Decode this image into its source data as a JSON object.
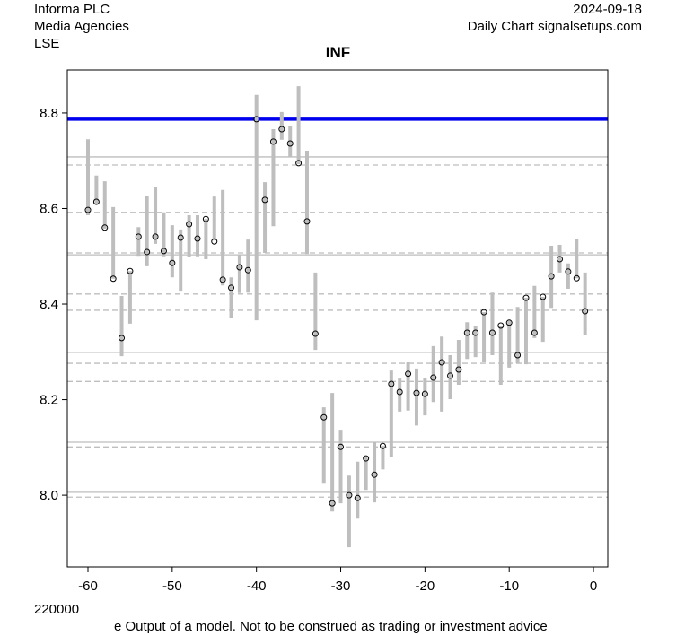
{
  "header": {
    "company": "Informa PLC",
    "sector": "Media Agencies",
    "exchange": "LSE",
    "date": "2024-09-18",
    "source": "Daily Chart signalsetups.com"
  },
  "footer": {
    "left_number": "220000",
    "disclaimer": "e Output of a model. Not to be construed as trading or investment advice"
  },
  "chart_data": {
    "type": "range-bar",
    "title": "INF",
    "xlim": [
      -62.45,
      1.7
    ],
    "ylim": [
      7.85,
      8.89
    ],
    "x_ticks": [
      -60,
      -50,
      -40,
      -30,
      -20,
      -10,
      0
    ],
    "y_ticks": [
      8.0,
      8.2,
      8.4,
      8.6,
      8.8
    ],
    "x": [
      -60,
      -59,
      -58,
      -57,
      -56,
      -55,
      -54,
      -53,
      -52,
      -51,
      -50,
      -49,
      -48,
      -47,
      -46,
      -45,
      -44,
      -43,
      -42,
      -41,
      -40,
      -39,
      -38,
      -37,
      -36,
      -35,
      -34,
      -33,
      -32,
      -31,
      -30,
      -29,
      -28,
      -27,
      -26,
      -25,
      -24,
      -23,
      -22,
      -21,
      -20,
      -19,
      -18,
      -17,
      -16,
      -15,
      -14,
      -13,
      -12,
      -11,
      -10,
      -9,
      -8,
      -7,
      -6,
      -5,
      -4,
      -3,
      -2,
      -1
    ],
    "close": [
      8.597,
      8.614,
      8.56,
      8.453,
      8.329,
      8.469,
      8.541,
      8.509,
      8.541,
      8.511,
      8.486,
      8.539,
      8.567,
      8.537,
      8.578,
      8.531,
      8.451,
      8.434,
      8.477,
      8.471,
      8.787,
      8.618,
      8.74,
      8.766,
      8.736,
      8.695,
      8.573,
      8.338,
      8.163,
      7.983,
      8.101,
      8.0,
      7.994,
      8.077,
      8.043,
      8.103,
      8.233,
      8.216,
      8.254,
      8.214,
      8.212,
      8.246,
      8.278,
      8.25,
      8.263,
      8.34,
      8.34,
      8.383,
      8.34,
      8.355,
      8.361,
      8.293,
      8.413,
      8.34,
      8.415,
      8.458,
      8.494,
      8.468,
      8.454,
      8.385
    ],
    "high": [
      8.745,
      8.669,
      8.657,
      8.603,
      8.417,
      8.469,
      8.561,
      8.627,
      8.646,
      8.592,
      8.565,
      8.556,
      8.586,
      8.586,
      8.578,
      8.625,
      8.639,
      8.456,
      8.503,
      8.535,
      8.838,
      8.655,
      8.766,
      8.802,
      8.772,
      8.856,
      8.721,
      8.466,
      8.184,
      8.214,
      8.137,
      8.041,
      8.07,
      8.081,
      8.111,
      8.103,
      8.261,
      8.244,
      8.278,
      8.265,
      8.246,
      8.312,
      8.332,
      8.293,
      8.325,
      8.362,
      8.355,
      8.383,
      8.424,
      8.355,
      8.366,
      8.394,
      8.413,
      8.438,
      8.415,
      8.522,
      8.524,
      8.485,
      8.537,
      8.466
    ],
    "low": [
      8.586,
      8.608,
      8.558,
      8.453,
      8.291,
      8.359,
      8.501,
      8.479,
      8.526,
      8.5,
      8.456,
      8.426,
      8.498,
      8.5,
      8.494,
      8.533,
      8.439,
      8.37,
      8.423,
      8.424,
      8.366,
      8.507,
      8.563,
      8.744,
      8.708,
      8.693,
      8.505,
      8.304,
      8.024,
      7.966,
      7.983,
      7.891,
      7.951,
      8.011,
      7.985,
      8.054,
      8.079,
      8.175,
      8.177,
      8.146,
      8.167,
      8.195,
      8.175,
      8.201,
      8.231,
      8.285,
      8.289,
      8.278,
      8.293,
      8.231,
      8.267,
      8.276,
      8.274,
      8.329,
      8.321,
      8.392,
      8.466,
      8.432,
      8.454,
      8.336
    ],
    "reference_line": 8.787,
    "solid_levels": [
      8.708,
      8.503,
      8.299,
      8.111,
      8.006
    ],
    "dashed_levels": [
      8.691,
      8.592,
      8.507,
      8.421,
      8.387,
      8.276,
      8.238,
      8.101,
      7.996
    ],
    "colors": {
      "bar": "#bebebe",
      "reference": "#0000ee",
      "level": "#bebebe"
    },
    "grid": false
  }
}
